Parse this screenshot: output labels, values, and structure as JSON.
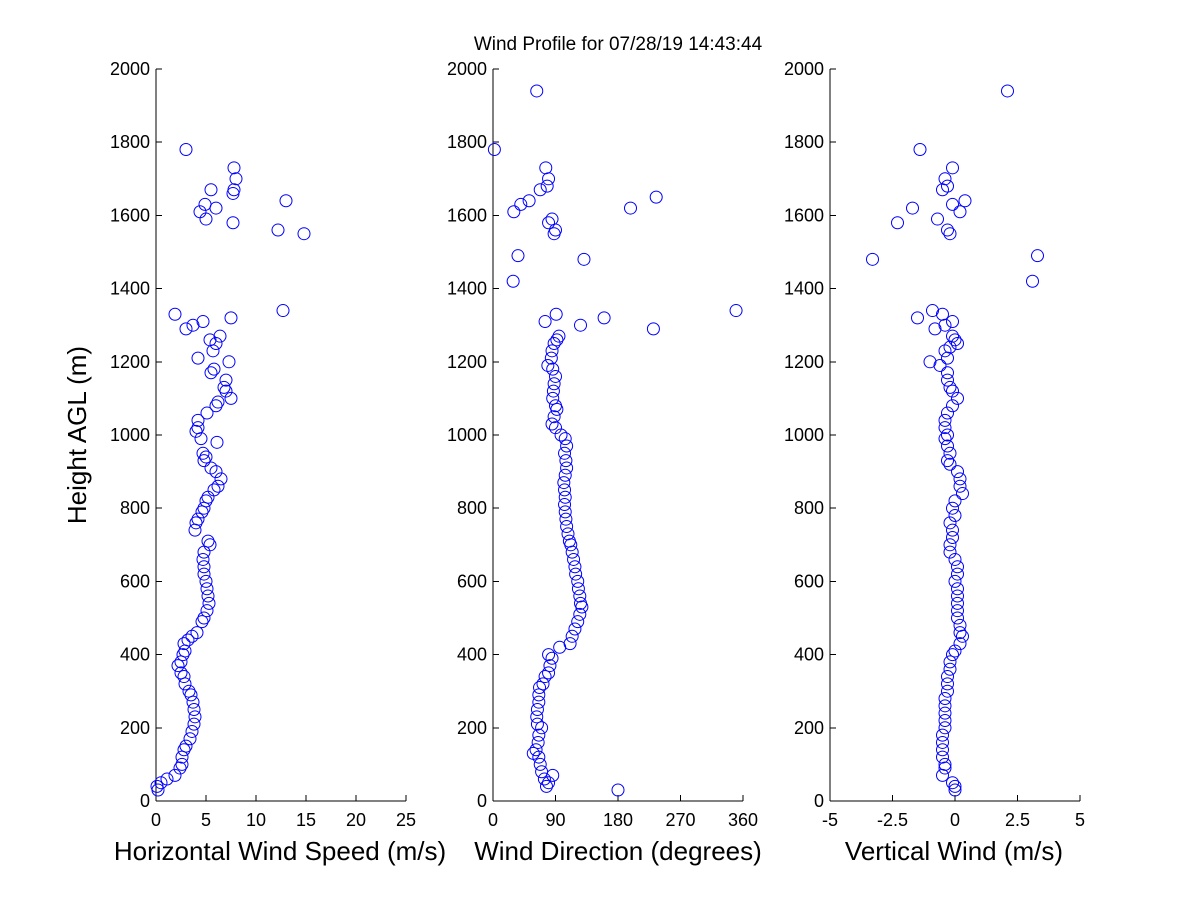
{
  "figure": {
    "title": "Wind Profile for  07/28/19 14:43:44",
    "ylabel": "Height AGL (m)"
  },
  "chart_data": [
    {
      "type": "scatter",
      "id": "speed",
      "xlabel": "Horizontal Wind Speed (m/s)",
      "ylabel": "Height AGL (m)",
      "xlim": [
        0,
        25
      ],
      "ylim": [
        0,
        2000
      ],
      "xticks": [
        0,
        5,
        10,
        15,
        20,
        25
      ],
      "xtick_labels": [
        "0",
        "5",
        "10",
        "15",
        "20",
        "25"
      ],
      "yticks": [
        0,
        200,
        400,
        600,
        800,
        1000,
        1200,
        1400,
        1600,
        1800,
        2000
      ],
      "grid": false,
      "marker": "open-circle",
      "color": "#0000ff",
      "points": [
        [
          3.0,
          1780
        ],
        [
          7.8,
          1730
        ],
        [
          8.0,
          1700
        ],
        [
          7.8,
          1670
        ],
        [
          5.5,
          1670
        ],
        [
          7.7,
          1660
        ],
        [
          13.0,
          1640
        ],
        [
          4.9,
          1630
        ],
        [
          6.0,
          1620
        ],
        [
          4.4,
          1610
        ],
        [
          5.0,
          1590
        ],
        [
          7.7,
          1580
        ],
        [
          12.2,
          1560
        ],
        [
          14.8,
          1550
        ],
        [
          12.7,
          1340
        ],
        [
          1.9,
          1330
        ],
        [
          7.5,
          1320
        ],
        [
          4.7,
          1310
        ],
        [
          3.7,
          1300
        ],
        [
          3.0,
          1290
        ],
        [
          6.4,
          1270
        ],
        [
          5.4,
          1260
        ],
        [
          6.0,
          1250
        ],
        [
          5.7,
          1230
        ],
        [
          4.2,
          1210
        ],
        [
          7.3,
          1200
        ],
        [
          5.8,
          1180
        ],
        [
          5.5,
          1170
        ],
        [
          7.0,
          1150
        ],
        [
          6.8,
          1130
        ],
        [
          7.0,
          1120
        ],
        [
          7.5,
          1100
        ],
        [
          6.2,
          1090
        ],
        [
          6.0,
          1080
        ],
        [
          5.1,
          1060
        ],
        [
          4.2,
          1040
        ],
        [
          4.2,
          1020
        ],
        [
          4.0,
          1010
        ],
        [
          4.5,
          990
        ],
        [
          6.1,
          980
        ],
        [
          4.7,
          950
        ],
        [
          5.0,
          940
        ],
        [
          4.8,
          930
        ],
        [
          5.5,
          910
        ],
        [
          6.0,
          900
        ],
        [
          6.5,
          880
        ],
        [
          6.2,
          860
        ],
        [
          5.8,
          850
        ],
        [
          5.2,
          830
        ],
        [
          5.0,
          820
        ],
        [
          4.8,
          800
        ],
        [
          4.6,
          790
        ],
        [
          4.2,
          770
        ],
        [
          4.0,
          760
        ],
        [
          3.9,
          740
        ],
        [
          5.2,
          710
        ],
        [
          5.4,
          700
        ],
        [
          4.8,
          680
        ],
        [
          4.7,
          660
        ],
        [
          4.8,
          640
        ],
        [
          4.8,
          620
        ],
        [
          5.0,
          600
        ],
        [
          5.1,
          580
        ],
        [
          5.2,
          560
        ],
        [
          5.3,
          540
        ],
        [
          5.1,
          520
        ],
        [
          4.8,
          500
        ],
        [
          4.6,
          490
        ],
        [
          4.1,
          460
        ],
        [
          3.6,
          450
        ],
        [
          3.2,
          440
        ],
        [
          2.8,
          430
        ],
        [
          2.9,
          410
        ],
        [
          2.7,
          400
        ],
        [
          2.5,
          380
        ],
        [
          2.2,
          370
        ],
        [
          2.5,
          350
        ],
        [
          2.8,
          340
        ],
        [
          2.9,
          320
        ],
        [
          3.3,
          300
        ],
        [
          3.5,
          290
        ],
        [
          3.7,
          270
        ],
        [
          3.8,
          250
        ],
        [
          3.9,
          230
        ],
        [
          3.8,
          210
        ],
        [
          3.6,
          190
        ],
        [
          3.4,
          170
        ],
        [
          3.0,
          150
        ],
        [
          2.8,
          140
        ],
        [
          2.6,
          120
        ],
        [
          2.6,
          100
        ],
        [
          2.4,
          90
        ],
        [
          1.9,
          70
        ],
        [
          1.1,
          60
        ],
        [
          0.5,
          50
        ],
        [
          0.1,
          40
        ],
        [
          0.2,
          30
        ]
      ]
    },
    {
      "type": "scatter",
      "id": "direction",
      "xlabel": "Wind Direction (degrees)",
      "ylabel": "",
      "xlim": [
        0,
        360
      ],
      "ylim": [
        0,
        2000
      ],
      "xticks": [
        0,
        90,
        180,
        270,
        360
      ],
      "xtick_labels": [
        "0",
        "90",
        "180",
        "270",
        "360"
      ],
      "yticks": [
        0,
        200,
        400,
        600,
        800,
        1000,
        1200,
        1400,
        1600,
        1800,
        2000
      ],
      "grid": false,
      "marker": "open-circle",
      "color": "#0000ff",
      "points": [
        [
          63,
          1940
        ],
        [
          2,
          1780
        ],
        [
          76,
          1730
        ],
        [
          80,
          1700
        ],
        [
          78,
          1680
        ],
        [
          68,
          1670
        ],
        [
          235,
          1650
        ],
        [
          52,
          1640
        ],
        [
          40,
          1630
        ],
        [
          198,
          1620
        ],
        [
          30,
          1610
        ],
        [
          85,
          1590
        ],
        [
          80,
          1580
        ],
        [
          90,
          1560
        ],
        [
          88,
          1550
        ],
        [
          36,
          1490
        ],
        [
          131,
          1480
        ],
        [
          29,
          1420
        ],
        [
          350,
          1340
        ],
        [
          91,
          1330
        ],
        [
          160,
          1320
        ],
        [
          75,
          1310
        ],
        [
          126,
          1300
        ],
        [
          231,
          1290
        ],
        [
          95,
          1270
        ],
        [
          92,
          1260
        ],
        [
          88,
          1250
        ],
        [
          85,
          1230
        ],
        [
          84,
          1210
        ],
        [
          79,
          1190
        ],
        [
          86,
          1180
        ],
        [
          90,
          1160
        ],
        [
          88,
          1140
        ],
        [
          87,
          1120
        ],
        [
          86,
          1100
        ],
        [
          90,
          1080
        ],
        [
          92,
          1070
        ],
        [
          88,
          1050
        ],
        [
          85,
          1030
        ],
        [
          90,
          1020
        ],
        [
          98,
          1000
        ],
        [
          104,
          990
        ],
        [
          106,
          970
        ],
        [
          103,
          950
        ],
        [
          105,
          930
        ],
        [
          106,
          910
        ],
        [
          104,
          890
        ],
        [
          102,
          870
        ],
        [
          103,
          850
        ],
        [
          104,
          830
        ],
        [
          103,
          810
        ],
        [
          104,
          790
        ],
        [
          105,
          770
        ],
        [
          106,
          750
        ],
        [
          108,
          730
        ],
        [
          110,
          710
        ],
        [
          112,
          700
        ],
        [
          114,
          680
        ],
        [
          116,
          660
        ],
        [
          118,
          640
        ],
        [
          119,
          620
        ],
        [
          122,
          600
        ],
        [
          123,
          580
        ],
        [
          125,
          560
        ],
        [
          126,
          540
        ],
        [
          128,
          530
        ],
        [
          125,
          510
        ],
        [
          122,
          490
        ],
        [
          118,
          470
        ],
        [
          114,
          450
        ],
        [
          111,
          430
        ],
        [
          96,
          420
        ],
        [
          80,
          400
        ],
        [
          85,
          390
        ],
        [
          82,
          370
        ],
        [
          80,
          350
        ],
        [
          75,
          340
        ],
        [
          72,
          320
        ],
        [
          67,
          310
        ],
        [
          66,
          290
        ],
        [
          66,
          270
        ],
        [
          64,
          250
        ],
        [
          63,
          230
        ],
        [
          64,
          210
        ],
        [
          70,
          200
        ],
        [
          66,
          180
        ],
        [
          65,
          160
        ],
        [
          62,
          140
        ],
        [
          58,
          130
        ],
        [
          66,
          120
        ],
        [
          68,
          100
        ],
        [
          70,
          80
        ],
        [
          86,
          70
        ],
        [
          74,
          60
        ],
        [
          80,
          50
        ],
        [
          77,
          40
        ],
        [
          180,
          30
        ]
      ]
    },
    {
      "type": "scatter",
      "id": "vertical",
      "xlabel": "Vertical Wind (m/s)",
      "ylabel": "",
      "xlim": [
        -5,
        5
      ],
      "ylim": [
        0,
        2000
      ],
      "xticks": [
        -5,
        -2.5,
        0,
        2.5,
        5
      ],
      "xtick_labels": [
        "-5",
        "-2.5",
        "0",
        "2.5",
        "5"
      ],
      "yticks": [
        0,
        200,
        400,
        600,
        800,
        1000,
        1200,
        1400,
        1600,
        1800,
        2000
      ],
      "grid": false,
      "marker": "open-circle",
      "color": "#0000ff",
      "points": [
        [
          2.1,
          1940
        ],
        [
          -1.4,
          1780
        ],
        [
          -0.1,
          1730
        ],
        [
          -0.4,
          1700
        ],
        [
          -0.3,
          1680
        ],
        [
          -0.5,
          1670
        ],
        [
          0.4,
          1640
        ],
        [
          -0.1,
          1630
        ],
        [
          -1.7,
          1620
        ],
        [
          0.2,
          1610
        ],
        [
          -0.7,
          1590
        ],
        [
          -2.3,
          1580
        ],
        [
          -0.3,
          1560
        ],
        [
          -0.2,
          1550
        ],
        [
          3.3,
          1490
        ],
        [
          -3.3,
          1480
        ],
        [
          3.1,
          1420
        ],
        [
          -0.9,
          1340
        ],
        [
          -0.5,
          1330
        ],
        [
          -1.5,
          1320
        ],
        [
          -0.1,
          1310
        ],
        [
          -0.4,
          1300
        ],
        [
          -0.8,
          1290
        ],
        [
          -0.1,
          1270
        ],
        [
          0.0,
          1260
        ],
        [
          0.1,
          1250
        ],
        [
          -0.2,
          1240
        ],
        [
          -0.4,
          1230
        ],
        [
          -0.3,
          1210
        ],
        [
          -1.0,
          1200
        ],
        [
          -0.6,
          1190
        ],
        [
          -0.3,
          1170
        ],
        [
          -0.3,
          1150
        ],
        [
          -0.2,
          1130
        ],
        [
          -0.1,
          1120
        ],
        [
          0.1,
          1100
        ],
        [
          -0.1,
          1080
        ],
        [
          -0.3,
          1060
        ],
        [
          -0.4,
          1040
        ],
        [
          -0.4,
          1020
        ],
        [
          -0.3,
          1000
        ],
        [
          -0.4,
          990
        ],
        [
          -0.3,
          970
        ],
        [
          -0.2,
          950
        ],
        [
          -0.3,
          930
        ],
        [
          -0.2,
          920
        ],
        [
          0.1,
          900
        ],
        [
          0.2,
          880
        ],
        [
          0.2,
          860
        ],
        [
          0.3,
          840
        ],
        [
          0.0,
          820
        ],
        [
          -0.1,
          800
        ],
        [
          0.0,
          780
        ],
        [
          -0.2,
          760
        ],
        [
          -0.1,
          740
        ],
        [
          -0.1,
          720
        ],
        [
          -0.2,
          700
        ],
        [
          -0.2,
          680
        ],
        [
          0.0,
          660
        ],
        [
          0.1,
          640
        ],
        [
          0.1,
          620
        ],
        [
          0.0,
          600
        ],
        [
          0.1,
          580
        ],
        [
          0.1,
          560
        ],
        [
          0.1,
          540
        ],
        [
          0.1,
          520
        ],
        [
          0.1,
          500
        ],
        [
          0.2,
          480
        ],
        [
          0.2,
          460
        ],
        [
          0.3,
          450
        ],
        [
          0.2,
          430
        ],
        [
          0.0,
          410
        ],
        [
          -0.1,
          400
        ],
        [
          -0.2,
          380
        ],
        [
          -0.2,
          360
        ],
        [
          -0.3,
          340
        ],
        [
          -0.3,
          320
        ],
        [
          -0.3,
          300
        ],
        [
          -0.4,
          280
        ],
        [
          -0.4,
          260
        ],
        [
          -0.4,
          240
        ],
        [
          -0.4,
          220
        ],
        [
          -0.4,
          200
        ],
        [
          -0.5,
          180
        ],
        [
          -0.5,
          160
        ],
        [
          -0.5,
          140
        ],
        [
          -0.5,
          120
        ],
        [
          -0.4,
          100
        ],
        [
          -0.4,
          90
        ],
        [
          -0.5,
          70
        ],
        [
          -0.1,
          50
        ],
        [
          0.0,
          40
        ],
        [
          0.0,
          30
        ]
      ]
    }
  ]
}
